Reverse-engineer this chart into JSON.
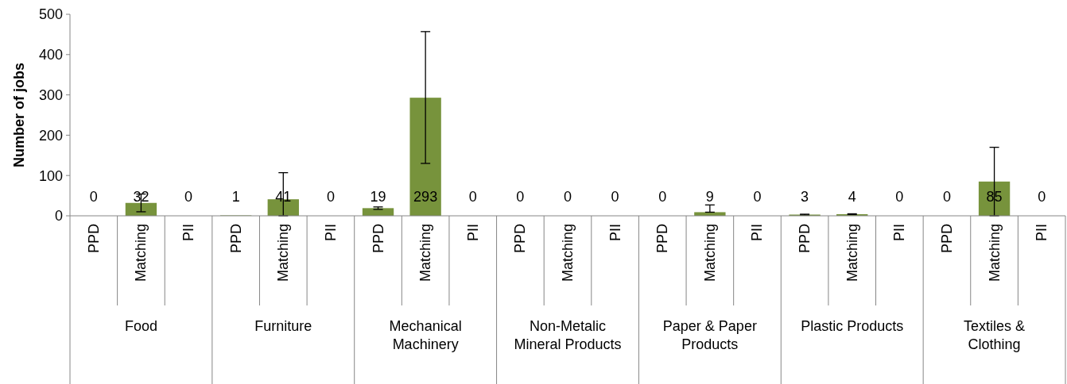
{
  "chart_data": {
    "type": "bar",
    "ylabel": "Number of jobs",
    "categories": [
      "PPD",
      "Matching",
      "PII",
      "PPD",
      "Matching",
      "PII",
      "PPD",
      "Matching",
      "PII",
      "PPD",
      "Matching",
      "PII",
      "PPD",
      "Matching",
      "PII",
      "PPD",
      "Matching",
      "PII",
      "PPD",
      "Matching",
      "PII"
    ],
    "values": [
      0,
      32,
      0,
      1,
      41,
      0,
      19,
      293,
      0,
      0,
      0,
      0,
      0,
      9,
      0,
      3,
      4,
      0,
      0,
      85,
      0
    ],
    "errors": [
      null,
      [
        10,
        54
      ],
      null,
      null,
      [
        0,
        107
      ],
      null,
      [
        16,
        22
      ],
      [
        130,
        457
      ],
      null,
      null,
      null,
      null,
      null,
      [
        9,
        27
      ],
      null,
      [
        2,
        4
      ],
      [
        3,
        5
      ],
      null,
      null,
      [
        0,
        170
      ],
      null
    ],
    "color": "#77933c",
    "ylim": [
      0,
      500
    ],
    "yticks": [
      0,
      100,
      200,
      300,
      400,
      500
    ],
    "data_labels": true,
    "grid": false,
    "annotations": [
      "Food",
      "Furniture",
      "Mechanical Machinery",
      "Non-Metalic Mineral Products",
      "Paper & Paper Products",
      "Plastic Products",
      "Textiles & Clothing"
    ]
  }
}
